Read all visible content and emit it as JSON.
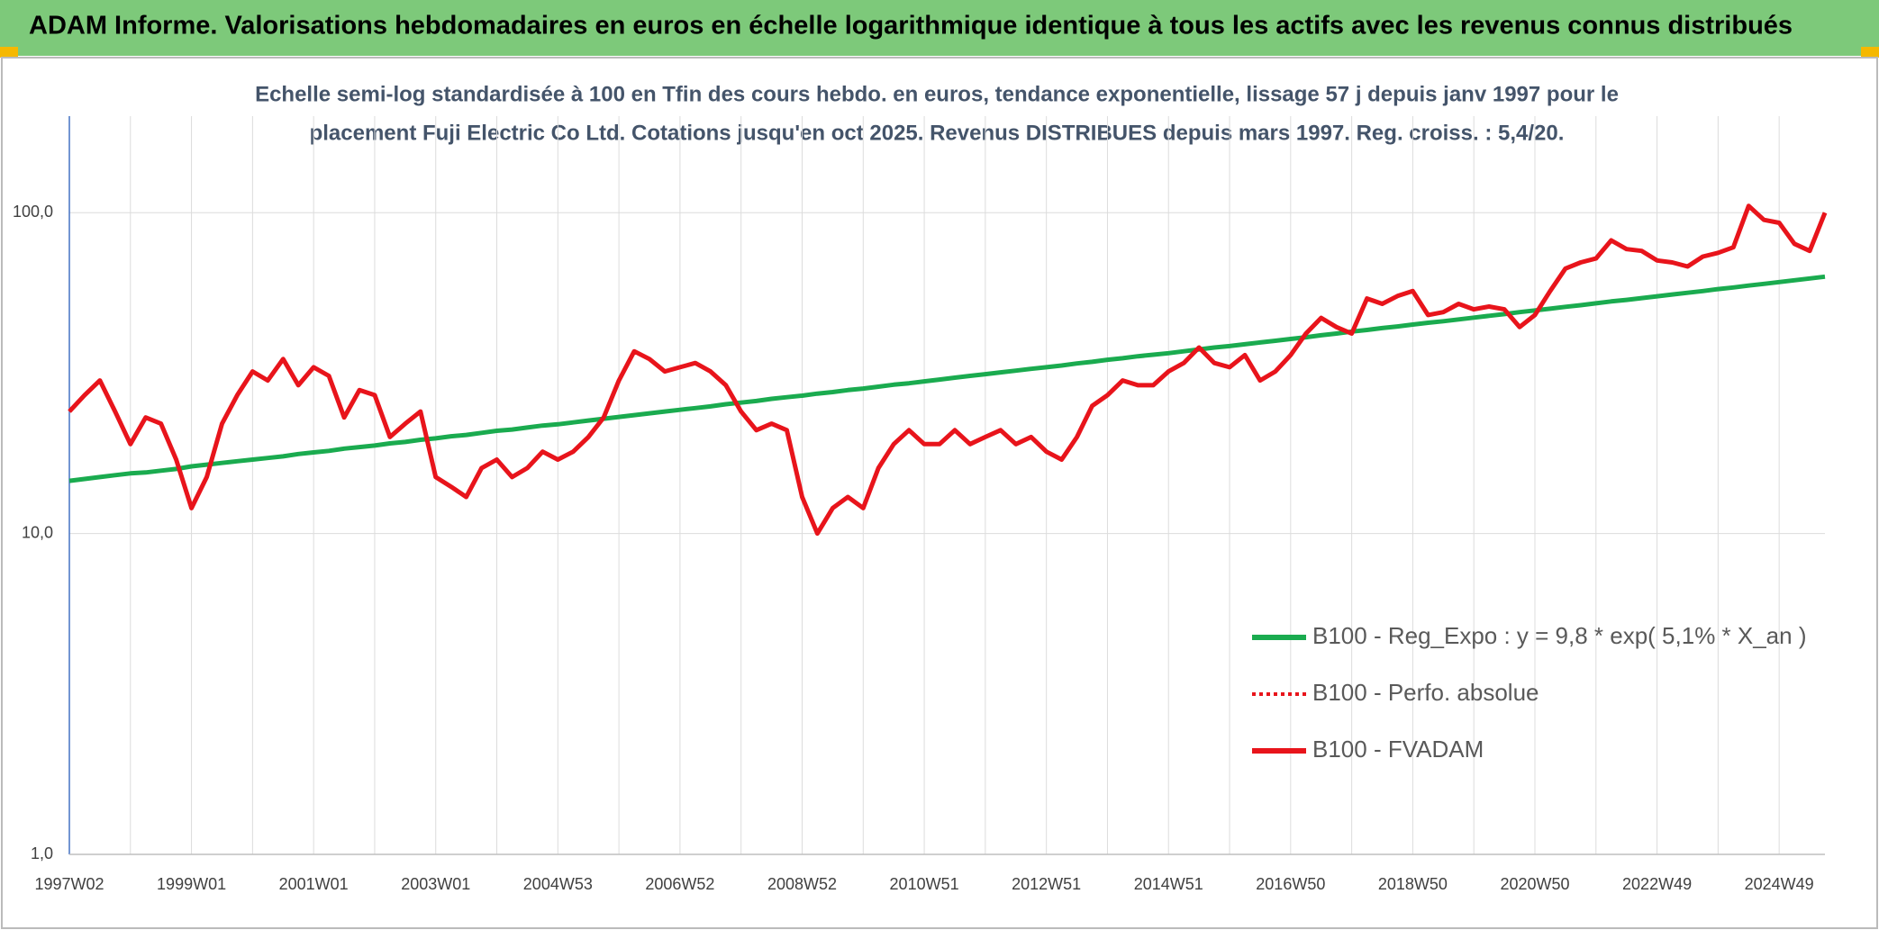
{
  "page_title": "ADAM Informe. Valorisations hebdomadaires en euros en échelle logarithmique identique à tous les actifs avec les revenus connus distribués",
  "chart_data": {
    "type": "line",
    "title": [
      "Echelle semi-log standardisée à 100 en Tfin des cours hebdo. en euros, tendance exponentielle, lissage 57 j depuis janv 1997 pour le",
      "placement Fuji Electric Co Ltd. Cotations jusqu'en oct 2025. Revenus DISTRIBUES depuis mars 1997. Reg. croiss. : 5,4/20."
    ],
    "categories": [
      "1997W02",
      null,
      null,
      null,
      null,
      null,
      null,
      null,
      "1999W01",
      null,
      null,
      null,
      null,
      null,
      null,
      null,
      "2001W01",
      null,
      null,
      null,
      null,
      null,
      null,
      null,
      "2003W01",
      null,
      null,
      null,
      null,
      null,
      null,
      null,
      "2004W53",
      null,
      null,
      null,
      null,
      null,
      null,
      null,
      "2006W52",
      null,
      null,
      null,
      null,
      null,
      null,
      null,
      "2008W52",
      null,
      null,
      null,
      null,
      null,
      null,
      null,
      "2010W51",
      null,
      null,
      null,
      null,
      null,
      null,
      null,
      "2012W51",
      null,
      null,
      null,
      null,
      null,
      null,
      null,
      "2014W51",
      null,
      null,
      null,
      null,
      null,
      null,
      null,
      "2016W50",
      null,
      null,
      null,
      null,
      null,
      null,
      null,
      "2018W50",
      null,
      null,
      null,
      null,
      null,
      null,
      null,
      "2020W50",
      null,
      null,
      null,
      null,
      null,
      null,
      null,
      "2022W49",
      null,
      null,
      null,
      null,
      null,
      null,
      null,
      "2024W49",
      null,
      null,
      null
    ],
    "series": [
      {
        "name": "B100 - Reg_Expo : y = 9,8 * exp( 5,1% *  X_an )",
        "color": "#1aab4f",
        "style": "solid",
        "values": [
          14.6,
          14.8,
          15.0,
          15.2,
          15.4,
          15.5,
          15.7,
          15.9,
          16.2,
          16.4,
          16.6,
          16.8,
          17.0,
          17.2,
          17.4,
          17.7,
          17.9,
          18.1,
          18.4,
          18.6,
          18.8,
          19.1,
          19.3,
          19.6,
          19.8,
          20.1,
          20.3,
          20.6,
          20.9,
          21.1,
          21.4,
          21.7,
          21.9,
          22.2,
          22.5,
          22.8,
          23.1,
          23.4,
          23.7,
          24.0,
          24.3,
          24.6,
          24.9,
          25.3,
          25.6,
          25.9,
          26.3,
          26.6,
          26.9,
          27.3,
          27.6,
          28.0,
          28.3,
          28.7,
          29.1,
          29.4,
          29.8,
          30.2,
          30.6,
          31.0,
          31.4,
          31.8,
          32.2,
          32.6,
          33.0,
          33.4,
          33.9,
          34.3,
          34.8,
          35.2,
          35.7,
          36.1,
          36.5,
          37.0,
          37.5,
          38.0,
          38.4,
          38.9,
          39.4,
          39.9,
          40.4,
          40.9,
          41.5,
          42.0,
          42.6,
          43.1,
          43.7,
          44.2,
          44.8,
          45.4,
          45.9,
          46.5,
          47.1,
          47.7,
          48.3,
          49.0,
          49.6,
          50.2,
          50.9,
          51.5,
          52.2,
          52.9,
          53.5,
          54.2,
          54.9,
          55.6,
          56.3,
          57.0,
          57.8,
          58.5,
          59.3,
          60.0,
          60.8,
          61.6,
          62.4,
          63.2
        ]
      },
      {
        "name": "B100 - Perfo. absolue",
        "color": "#e8141b",
        "style": "dotted",
        "values": [
          24,
          27,
          30,
          24,
          19,
          23,
          22,
          17,
          12,
          15,
          22,
          27,
          32,
          30,
          35,
          29,
          33,
          31,
          23,
          28,
          27,
          20,
          22,
          24,
          15,
          14,
          13,
          16,
          17,
          15,
          16,
          18,
          17,
          18,
          20,
          23,
          30,
          37,
          35,
          32,
          33,
          34,
          32,
          29,
          24,
          21,
          22,
          21,
          13,
          10,
          12,
          13,
          12,
          16,
          19,
          21,
          19,
          19,
          21,
          19,
          20,
          21,
          19,
          20,
          18,
          17,
          20,
          25,
          27,
          30,
          29,
          29,
          32,
          34,
          38,
          34,
          33,
          36,
          30,
          32,
          36,
          42,
          47,
          44,
          42,
          54,
          52,
          55,
          57,
          48,
          49,
          52,
          50,
          51,
          50,
          44,
          48,
          57,
          67,
          70,
          72,
          82,
          77,
          76,
          71,
          70,
          68,
          73,
          75,
          78,
          105,
          95,
          93,
          80,
          76,
          100
        ]
      },
      {
        "name": "B100 - FVADAM",
        "color": "#e8141b",
        "style": "solid",
        "values": [
          24,
          27,
          30,
          24,
          19,
          23,
          22,
          17,
          12,
          15,
          22,
          27,
          32,
          30,
          35,
          29,
          33,
          31,
          23,
          28,
          27,
          20,
          22,
          24,
          15,
          14,
          13,
          16,
          17,
          15,
          16,
          18,
          17,
          18,
          20,
          23,
          30,
          37,
          35,
          32,
          33,
          34,
          32,
          29,
          24,
          21,
          22,
          21,
          13,
          10,
          12,
          13,
          12,
          16,
          19,
          21,
          19,
          19,
          21,
          19,
          20,
          21,
          19,
          20,
          18,
          17,
          20,
          25,
          27,
          30,
          29,
          29,
          32,
          34,
          38,
          34,
          33,
          36,
          30,
          32,
          36,
          42,
          47,
          44,
          42,
          54,
          52,
          55,
          57,
          48,
          49,
          52,
          50,
          51,
          50,
          44,
          48,
          57,
          67,
          70,
          72,
          82,
          77,
          76,
          71,
          70,
          68,
          73,
          75,
          78,
          105,
          95,
          93,
          80,
          76,
          100
        ]
      }
    ],
    "log_scale": true,
    "ylim": [
      1,
      200
    ],
    "yticks": [
      {
        "value": 1,
        "label": "1,0"
      },
      {
        "value": 10,
        "label": "10,0"
      },
      {
        "value": 100,
        "label": "100,0"
      }
    ],
    "grid": true,
    "legend": "lower right"
  }
}
